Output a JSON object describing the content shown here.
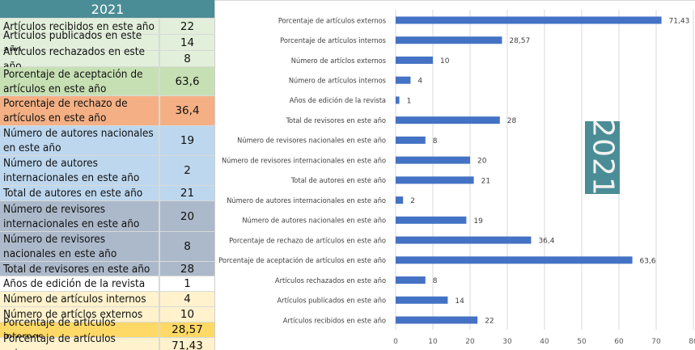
{
  "table": {
    "header": "2021",
    "rows": [
      {
        "label": "Artículos recibidos en este año",
        "value": "22",
        "color": "#e2efda"
      },
      {
        "label": "Artículos publicados en este año",
        "value": "14",
        "color": "#e2efda"
      },
      {
        "label": "Artículos rechazados en este año",
        "value": "8",
        "color": "#e2efda"
      },
      {
        "label": "Porcentaje de aceptación de artículos en este año",
        "value": "63,6",
        "color": "#c6e0b4"
      },
      {
        "label": "Porcentaje de rechazo de artículos en este año",
        "value": "36,4",
        "color": "#f4b084"
      },
      {
        "label": "Número de autores nacionales en este año",
        "value": "19",
        "color": "#bdd7ee"
      },
      {
        "label": "Número de autores internacionales en este año",
        "value": "2",
        "color": "#bdd7ee"
      },
      {
        "label": "Total de autores en este año",
        "value": "21",
        "color": "#bdd7ee"
      },
      {
        "label": "Número de revisores internacionales en este año",
        "value": "20",
        "color": "#acb9ca"
      },
      {
        "label": "Número de revisores nacionales en este año",
        "value": "8",
        "color": "#acb9ca"
      },
      {
        "label": "Total de revisores en este año",
        "value": "28",
        "color": "#acb9ca"
      },
      {
        "label": "Años de edición de la revista",
        "value": "1",
        "color": "#ffffff"
      },
      {
        "label": "Número de artículos internos",
        "value": "4",
        "color": "#fff2cc"
      },
      {
        "label": "Número de artíclos externos",
        "value": "10",
        "color": "#fff2cc"
      },
      {
        "label": "Porcentaje de artículos internos",
        "value": "28,57",
        "color": "#ffd966"
      },
      {
        "label": "Porcentaje de artículos externos",
        "value": "71,43",
        "color": "#fff2cc"
      }
    ]
  },
  "badge": {
    "text": "2021",
    "color": "#4a8d96"
  },
  "chart_data": {
    "type": "bar",
    "orientation": "horizontal",
    "title": "",
    "xlabel": "",
    "ylabel": "",
    "xlim": [
      0,
      80
    ],
    "xticks": [
      0,
      10,
      20,
      30,
      40,
      50,
      60,
      70,
      80
    ],
    "grid": true,
    "bar_color": "#4472c4",
    "categories": [
      "Porcentaje de artículos externos",
      "Porcentaje de artículos internos",
      "Número de artíclos externos",
      "Número de artículos internos",
      "Años de edición de la revista",
      "Total de revisores en este año",
      "Número de revisores nacionales en este año",
      "Número de revisores internacionales en este año",
      "Total de autores en este año",
      "Número de autores internacionales en este año",
      "Número de autores nacionales en este año",
      "Porcentaje de rechazo de artículos en este año",
      "Porcentaje de aceptación de artículos en este año",
      "Artículos rechazados en este año",
      "Artículos publicados en este año",
      "Artículos recibidos en este año"
    ],
    "values": [
      71.43,
      28.57,
      10,
      4,
      1,
      28,
      8,
      20,
      21,
      2,
      19,
      36.4,
      63.6,
      8,
      14,
      22
    ],
    "value_labels": [
      "71,43",
      "28,57",
      "10",
      "4",
      "1",
      "28",
      "8",
      "20",
      "21",
      "2",
      "19",
      "36,4",
      "63,6",
      "8",
      "14",
      "22"
    ]
  }
}
